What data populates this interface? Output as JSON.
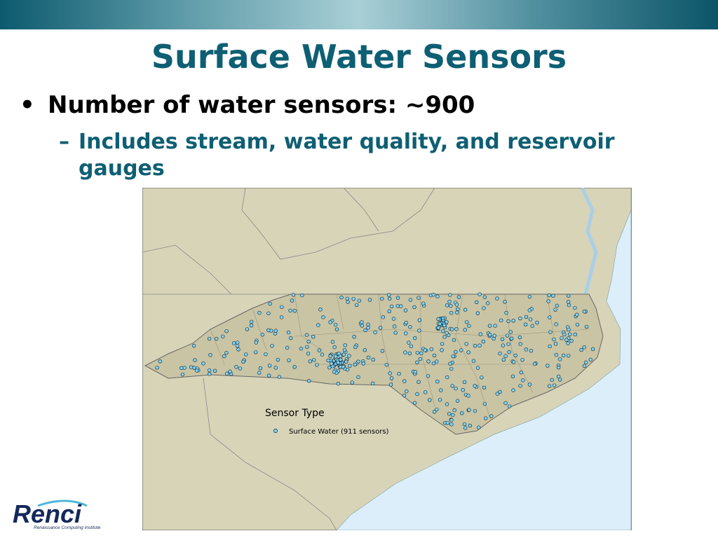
{
  "title": "Surface Water Sensors",
  "bullets": [
    {
      "text": "Number of water sensors: ~900",
      "sub": [
        "Includes stream, water quality, and reservoir gauges"
      ]
    }
  ],
  "map": {
    "legend": {
      "title": "Sensor Type",
      "items": [
        "Surface Water (911 sensors)"
      ]
    }
  },
  "logo": {
    "name": "Renci",
    "tagline": "Renaissance Computing Institute"
  }
}
